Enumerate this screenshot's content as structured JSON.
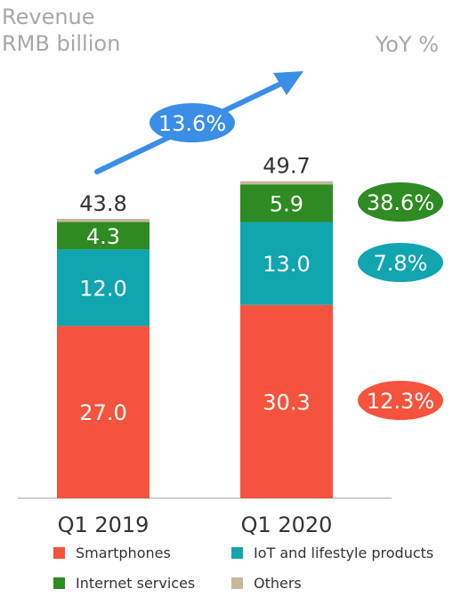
{
  "chart_data": {
    "type": "bar",
    "stacked": true,
    "ylabel": "Revenue\nRMB billion",
    "yoy_header": "YoY %",
    "categories": [
      "Q1 2019",
      "Q1 2020"
    ],
    "totals": [
      "43.8",
      "49.7"
    ],
    "series": [
      {
        "name": "Smartphones",
        "values": [
          27.0,
          30.3
        ],
        "labels": [
          "27.0",
          "30.3"
        ],
        "color": "#f5533d",
        "yoy": "12.3%"
      },
      {
        "name": "IoT and lifestyle products",
        "values": [
          12.0,
          13.0
        ],
        "labels": [
          "12.0",
          "13.0"
        ],
        "color": "#11a5b0",
        "yoy": "7.8%"
      },
      {
        "name": "Internet services",
        "values": [
          4.3,
          5.9
        ],
        "labels": [
          "4.3",
          "5.9"
        ],
        "color": "#2e8b22",
        "yoy": "38.6%"
      },
      {
        "name": "Others",
        "values": [
          0.5,
          0.5
        ],
        "labels": [
          "",
          ""
        ],
        "color": "#c8b89a",
        "yoy": ""
      }
    ],
    "total_growth": "13.6%",
    "arrow_color": "#3a8ee6",
    "legend_placement": "bottom",
    "grid": false
  }
}
